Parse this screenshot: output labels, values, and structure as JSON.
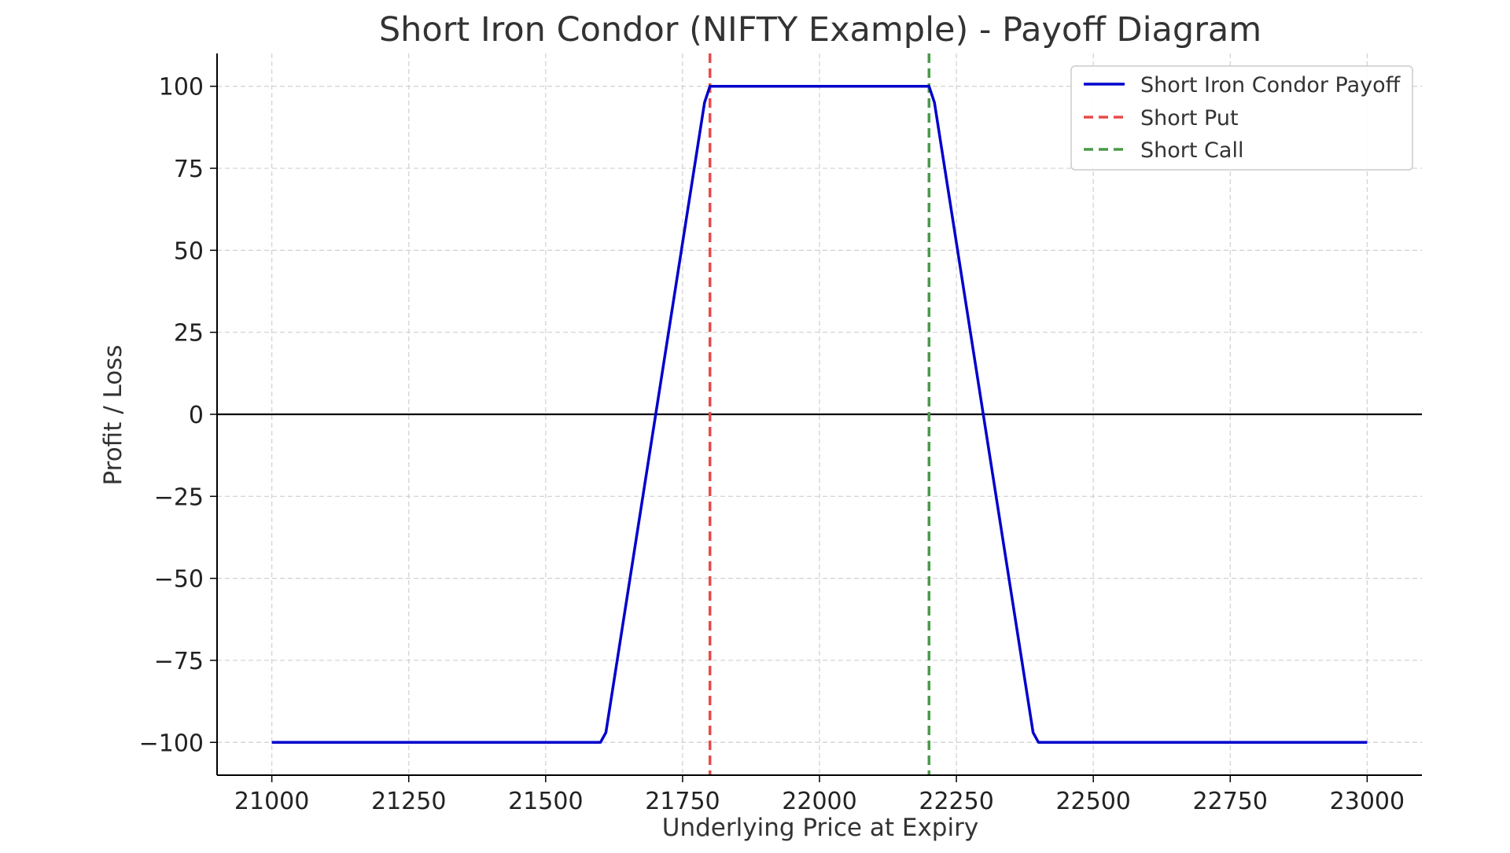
{
  "chart_data": {
    "type": "line",
    "title": "Short Iron Condor (NIFTY Example) - Payoff Diagram",
    "xlabel": "Underlying Price at Expiry",
    "ylabel": "Profit / Loss",
    "xlim": [
      20900,
      23100
    ],
    "ylim": [
      -110,
      110
    ],
    "x_ticks": [
      21000,
      21250,
      21500,
      21750,
      22000,
      22250,
      22500,
      22750,
      23000
    ],
    "x_tick_labels": [
      "21000",
      "21250",
      "21500",
      "21750",
      "22000",
      "22250",
      "22500",
      "22750",
      "23000"
    ],
    "y_ticks": [
      100,
      75,
      50,
      25,
      0,
      -25,
      -50,
      -75,
      -100
    ],
    "y_tick_labels": [
      "100",
      "75",
      "50",
      "25",
      "0",
      "−25",
      "−50",
      "−75",
      "−100"
    ],
    "grid": true,
    "legend_position": "top-right",
    "series": [
      {
        "name": "Short Iron Condor Payoff",
        "color": "#0000cc",
        "style": "solid",
        "x": [
          21000,
          21600,
          21610,
          21790,
          21800,
          22200,
          22210,
          22390,
          22400,
          23000
        ],
        "y": [
          -100,
          -100,
          -97,
          95,
          100,
          100,
          95,
          -97,
          -100,
          -100
        ]
      }
    ],
    "vertical_lines": [
      {
        "name": "Short Put",
        "x": 21800,
        "color": "#e84a4a",
        "style": "dashed"
      },
      {
        "name": "Short Call",
        "x": 22200,
        "color": "#4a9a4a",
        "style": "dashed"
      }
    ],
    "horizontal_lines": [
      {
        "y": 0,
        "color": "#000000",
        "style": "solid"
      }
    ]
  }
}
